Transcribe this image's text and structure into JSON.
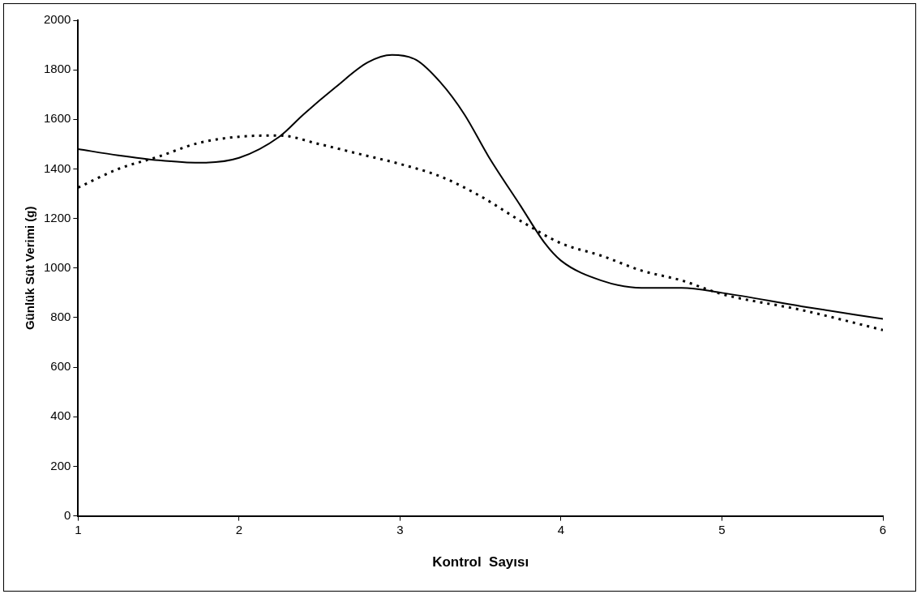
{
  "chart_data": {
    "type": "line",
    "xlabel": "Kontrol  Sayısı",
    "ylabel": "Günlük Süt Verimi (g)",
    "xlim": [
      1,
      6
    ],
    "xticks": [
      1,
      2,
      3,
      4,
      5,
      6
    ],
    "ylim": [
      0,
      2000
    ],
    "yticks": [
      0,
      200,
      400,
      600,
      800,
      1000,
      1200,
      1400,
      1600,
      1800,
      2000
    ],
    "grid": false,
    "legend": false,
    "marker": "none",
    "series": [
      {
        "color": "#000000",
        "line_style": "solid",
        "x": [
          1,
          1.25,
          1.5,
          1.75,
          2,
          2.25,
          2.4,
          2.6,
          2.8,
          2.95,
          3.1,
          3.25,
          3.4,
          3.55,
          3.75,
          3.9,
          4,
          4.25,
          4.5,
          4.75,
          5,
          5.5,
          6
        ],
        "values": [
          1480,
          1455,
          1435,
          1425,
          1445,
          1530,
          1620,
          1730,
          1830,
          1860,
          1840,
          1750,
          1620,
          1450,
          1250,
          1100,
          1030,
          950,
          920,
          920,
          900,
          845,
          795
        ]
      },
      {
        "color": "#000000",
        "line_style": "dotted",
        "x": [
          1,
          1.25,
          1.5,
          1.75,
          2,
          2.25,
          2.5,
          2.75,
          3,
          3.25,
          3.5,
          3.75,
          4,
          4.25,
          4.5,
          4.75,
          5,
          5.5,
          6
        ],
        "values": [
          1325,
          1400,
          1450,
          1505,
          1530,
          1535,
          1500,
          1460,
          1420,
          1370,
          1290,
          1190,
          1100,
          1050,
          990,
          950,
          895,
          830,
          750
        ]
      }
    ]
  }
}
